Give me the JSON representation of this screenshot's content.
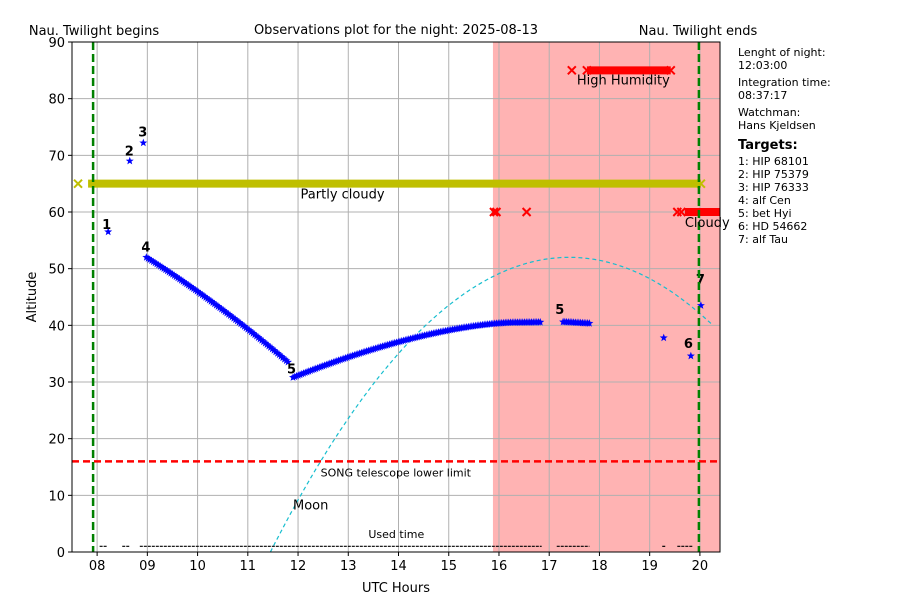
{
  "chart_data": {
    "type": "scatter",
    "title": "Observations plot for the night: 2025-08-13",
    "xlabel": "UTC Hours",
    "ylabel": "Altitude",
    "xlim": [
      7.5,
      20.4
    ],
    "ylim": [
      0,
      90
    ],
    "grid": true,
    "x_ticks": [
      {
        "value": 8,
        "label": "08"
      },
      {
        "value": 9,
        "label": "09"
      },
      {
        "value": 10,
        "label": "10"
      },
      {
        "value": 11,
        "label": "11"
      },
      {
        "value": 12,
        "label": "12"
      },
      {
        "value": 13,
        "label": "13"
      },
      {
        "value": 14,
        "label": "14"
      },
      {
        "value": 15,
        "label": "15"
      },
      {
        "value": 16,
        "label": "16"
      },
      {
        "value": 17,
        "label": "17"
      },
      {
        "value": 18,
        "label": "18"
      },
      {
        "value": 19,
        "label": "19"
      },
      {
        "value": 20,
        "label": "20"
      }
    ],
    "y_ticks": [
      0,
      10,
      20,
      30,
      40,
      50,
      60,
      70,
      80,
      90
    ],
    "twilight": {
      "begin_x": 7.92,
      "end_x": 19.98,
      "begin_label": "Nau. Twilight begins",
      "end_label": "Nau. Twilight ends",
      "color": "#008000"
    },
    "bad_weather_region": {
      "x_start": 15.88,
      "x_end": 20.4,
      "color": "#ffb3b3"
    },
    "lower_limit": {
      "y": 16,
      "label": "SONG telescope lower limit",
      "color": "#ff0000"
    },
    "weather": [
      {
        "label": "Partly cloudy",
        "y": 65,
        "x_start": 7.62,
        "x_end": 20.02,
        "color": "#bfbf00"
      },
      {
        "label": "High Humidity",
        "y": 85,
        "x_start": 17.45,
        "x_end": 19.42,
        "color": "#ff0000",
        "gap": [
          17.5,
          17.75
        ]
      },
      {
        "label": "Cloudy",
        "y": 60,
        "x_start": 19.55,
        "x_end": 20.4,
        "color": "#ff0000",
        "extra_points": [
          15.9,
          15.95,
          16.55
        ]
      }
    ],
    "moon": {
      "label": "Moon",
      "peak_x": 17.4,
      "peak_y": 52,
      "rise_x": 11.45,
      "end_x": 20.27,
      "color": "#17becf"
    },
    "targets": [
      {
        "id": "1",
        "name": "HIP 68101",
        "points": [
          [
            8.22,
            56.5
          ]
        ],
        "label_at": [
          8.1,
          57
        ]
      },
      {
        "id": "2",
        "name": "HIP 75379",
        "points": [
          [
            8.65,
            69
          ]
        ],
        "label_at": [
          8.55,
          70
        ]
      },
      {
        "id": "3",
        "name": "HIP 76333",
        "points": [
          [
            8.92,
            72.2
          ]
        ],
        "label_at": [
          8.82,
          73.3
        ]
      },
      {
        "id": "4",
        "name": "alf Cen",
        "track": {
          "x_start": 8.98,
          "y_start": 52,
          "x_end": 11.8,
          "y_end": 33.5
        },
        "label_at": [
          8.88,
          53
        ]
      },
      {
        "id": "5",
        "name": "bet Hyi",
        "track": {
          "x_start": 11.9,
          "y_start": 30.8,
          "x_end": 17.8,
          "y_end": 40.3,
          "gaps": [
            [
              16.85,
              17.25
            ]
          ]
        },
        "label_at": [
          11.78,
          31.5
        ],
        "label2_at": [
          17.12,
          42
        ]
      },
      {
        "id": "6",
        "name": "HD 54662",
        "points": [
          [
            19.28,
            37.8
          ],
          [
            19.82,
            34.6
          ]
        ],
        "label_at": [
          19.68,
          36
        ]
      },
      {
        "id": "7",
        "name": "alf Tau",
        "points": [
          [
            20.02,
            43.5
          ]
        ],
        "label_at": [
          19.92,
          47.3
        ]
      }
    ],
    "used_time": {
      "label": "Used time",
      "y": 1,
      "segments": [
        [
          8.05,
          8.2
        ],
        [
          8.5,
          8.65
        ],
        [
          8.85,
          16.85
        ],
        [
          17.15,
          17.8
        ],
        [
          19.25,
          19.32
        ],
        [
          19.55,
          19.85
        ]
      ]
    },
    "colors": {
      "targets": "#0000ff",
      "text": "#000000",
      "grid": "#b0b0b0"
    }
  },
  "info": {
    "night_label": "Lenght of night:",
    "night_value": "12:03:00",
    "integration_label": "Integration time:",
    "integration_value": "08:37:17",
    "watchman_label": "Watchman:",
    "watchman_value": "Hans Kjeldsen",
    "targets_heading": "Targets:",
    "targets": [
      "1: HIP 68101",
      "2: HIP 75379",
      "3: HIP 76333",
      "4: alf Cen",
      "5: bet Hyi",
      "6: HD 54662",
      "7: alf Tau"
    ]
  }
}
